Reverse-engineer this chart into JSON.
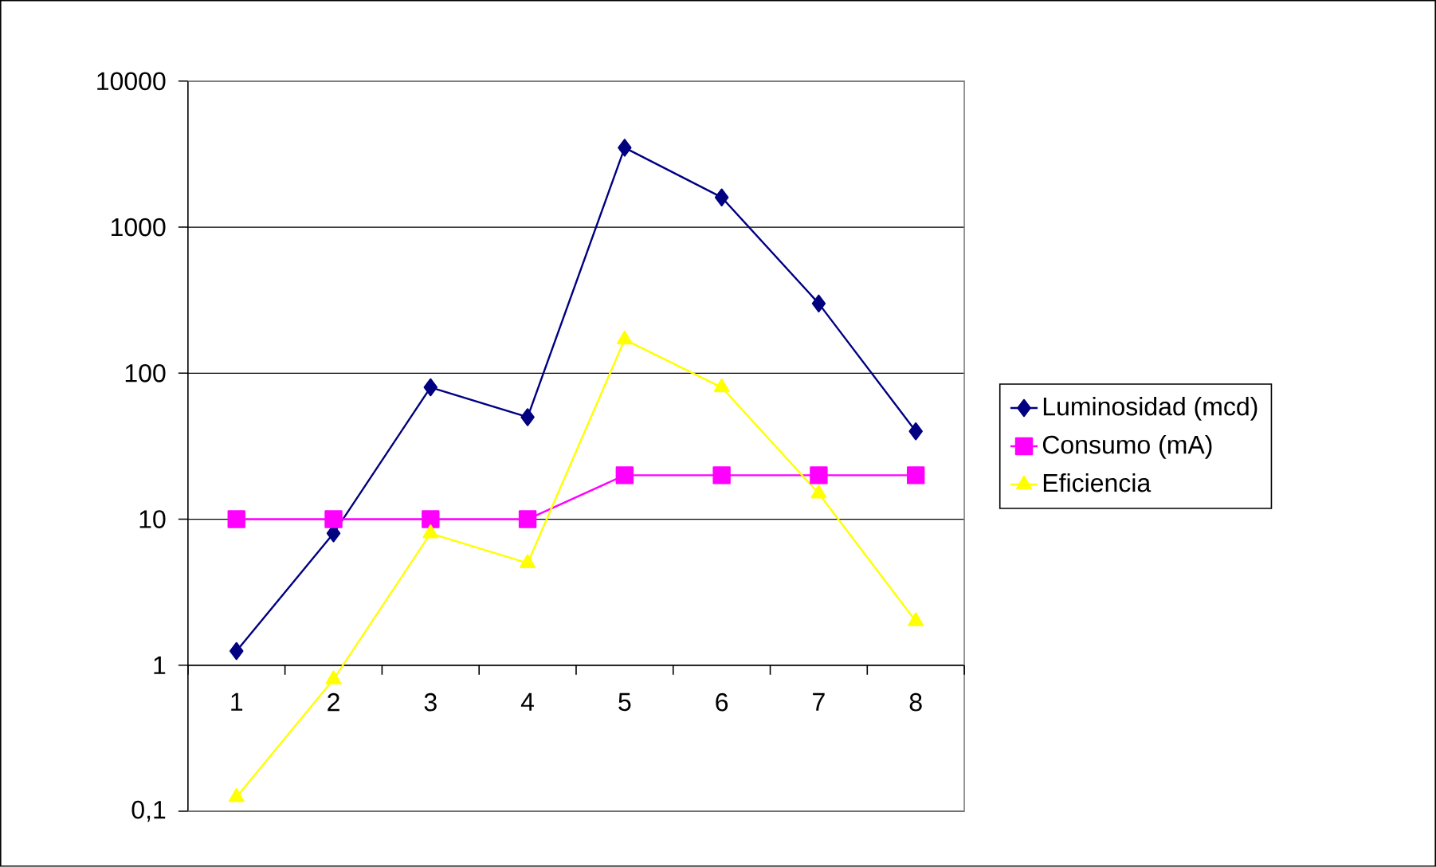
{
  "chart_data": {
    "type": "line",
    "categories": [
      "1",
      "2",
      "3",
      "4",
      "5",
      "6",
      "7",
      "8"
    ],
    "series": [
      {
        "name": "Luminosidad (mcd)",
        "color": "#000080",
        "marker": "diamond",
        "values": [
          1.25,
          8,
          80,
          50,
          3500,
          1600,
          300,
          40
        ]
      },
      {
        "name": "Consumo (mA)",
        "color": "#ff00ff",
        "marker": "square",
        "values": [
          10,
          10,
          10,
          10,
          20,
          20,
          20,
          20
        ]
      },
      {
        "name": "Eficiencia",
        "color": "#ffff00",
        "marker": "triangle",
        "values": [
          0.125,
          0.8,
          8,
          5,
          170,
          80,
          15,
          2
        ]
      }
    ],
    "log": "y",
    "ylim": [
      0.1,
      10000
    ],
    "yticks": [
      {
        "value": 0.1,
        "label": "0,1"
      },
      1,
      10,
      100,
      1000,
      10000
    ],
    "grid": "y",
    "legend": "right",
    "line_style": "solid"
  }
}
